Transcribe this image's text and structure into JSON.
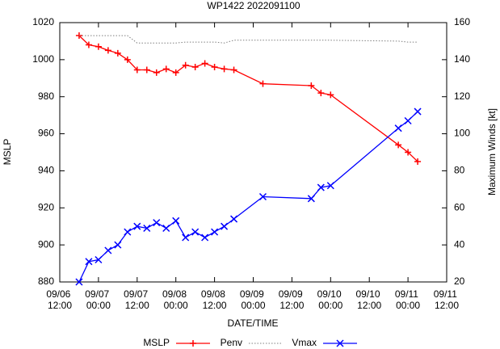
{
  "chart_data": {
    "type": "line",
    "title": "WP1422 2022091100",
    "xlabel": "DATE/TIME",
    "ylabel": "MSLP",
    "y2label": "Maximum Winds [kt]",
    "x": [
      "09/06 18:00",
      "09/06 21:00",
      "09/07 00:00",
      "09/07 03:00",
      "09/07 06:00",
      "09/07 09:00",
      "09/07 12:00",
      "09/07 15:00",
      "09/07 18:00",
      "09/07 21:00",
      "09/08 00:00",
      "09/08 03:00",
      "09/08 06:00",
      "09/08 09:00",
      "09/08 12:00",
      "09/08 15:00",
      "09/08 18:00",
      "09/09 03:00",
      "09/09 18:00",
      "09/09 21:00",
      "09/10 00:00",
      "09/10 21:00",
      "09/11 00:00",
      "09/11 03:00"
    ],
    "xlim": [
      "09/06 12:00",
      "09/11 12:00"
    ],
    "xticks": [
      "09/06 12:00",
      "09/07 00:00",
      "09/07 12:00",
      "09/08 00:00",
      "09/08 12:00",
      "09/09 00:00",
      "09/09 12:00",
      "09/10 00:00",
      "09/10 12:00",
      "09/11 00:00",
      "09/11 12:00"
    ],
    "ylim": [
      880,
      1020
    ],
    "yticks": [
      880,
      900,
      920,
      940,
      960,
      980,
      1000,
      1020
    ],
    "y2lim": [
      20,
      160
    ],
    "y2ticks": [
      20,
      40,
      60,
      80,
      100,
      120,
      140,
      160
    ],
    "series": [
      {
        "name": "MSLP",
        "color": "#ff0000",
        "marker": "+",
        "line_style": "solid",
        "values": [
          1013,
          1008,
          1007,
          1005,
          1003.5,
          1000,
          994.5,
          994.5,
          993,
          995,
          993,
          997,
          996,
          998,
          996,
          995,
          994.5,
          987,
          986,
          982,
          981,
          954,
          950,
          945
        ]
      },
      {
        "name": "Penv",
        "color": "#7f7f7f",
        "marker": "none",
        "line_style": "dotted",
        "values": [
          1013,
          1013,
          1013,
          1013,
          1013,
          1013,
          1009,
          1009,
          1009,
          1009,
          1009,
          1009.5,
          1009.5,
          1009.5,
          1009.5,
          1009,
          1010.5,
          1010.5,
          1010.5,
          1010.5,
          1010.5,
          1010,
          1009.5,
          1009.5
        ]
      },
      {
        "name": "Vmax",
        "color": "#0000ff",
        "marker": "x",
        "line_style": "solid",
        "axis": "y2",
        "values": [
          20,
          31,
          32,
          37,
          40,
          47,
          50,
          49,
          52,
          49,
          53,
          44,
          47,
          44,
          47,
          50,
          54,
          66,
          65,
          71,
          72,
          103,
          107,
          112
        ]
      }
    ]
  }
}
